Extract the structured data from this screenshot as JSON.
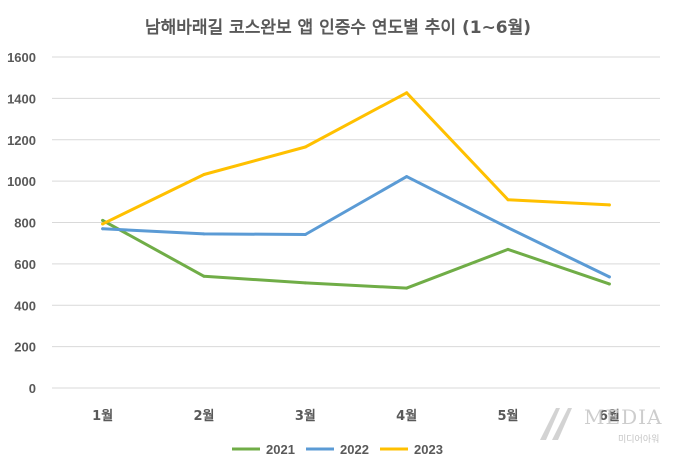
{
  "chart_data": {
    "type": "line",
    "title": "남해바래길 코스완보 앱 인증수 연도별 추이 (1~6월)",
    "categories": [
      "1월",
      "2월",
      "3월",
      "4월",
      "5월",
      "6월"
    ],
    "series": [
      {
        "name": "2021",
        "color": "#70ad47",
        "values": [
          810,
          540,
          508,
          483,
          670,
          503
        ]
      },
      {
        "name": "2022",
        "color": "#5b9bd5",
        "values": [
          770,
          745,
          742,
          1022,
          775,
          537
        ]
      },
      {
        "name": "2023",
        "color": "#ffc000",
        "values": [
          793,
          1032,
          1165,
          1427,
          910,
          885
        ]
      }
    ],
    "ylim": [
      0,
      1600
    ],
    "yticks": [
      0,
      200,
      400,
      600,
      800,
      1000,
      1200,
      1400,
      1600
    ],
    "grid": true,
    "legend": "bottom"
  },
  "watermark": {
    "logo": "MEDIA",
    "text": "미디어아워"
  }
}
